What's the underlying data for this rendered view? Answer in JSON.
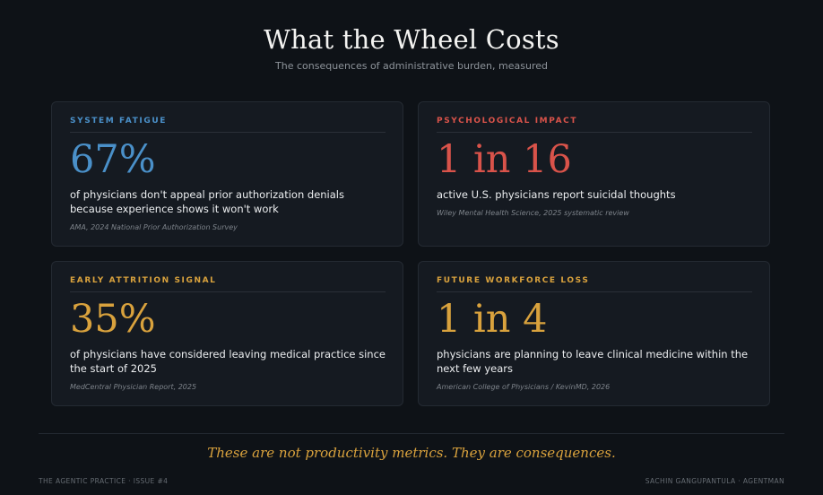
{
  "header": {
    "title": "What the Wheel Costs",
    "subtitle": "The consequences of administrative burden, measured"
  },
  "cards": [
    {
      "label": "SYSTEM FATIGUE",
      "stat": "67%",
      "description": "of physicians don't appeal prior authorization denials because experience shows it won't work",
      "source": "AMA, 2024 National Prior Authorization Survey",
      "accent": "#4a90c9"
    },
    {
      "label": "PSYCHOLOGICAL IMPACT",
      "stat": "1 in 16",
      "description": "active U.S. physicians report suicidal thoughts",
      "source": "Wiley Mental Health Science, 2025 systematic review",
      "accent": "#d9534a"
    },
    {
      "label": "EARLY ATTRITION SIGNAL",
      "stat": "35%",
      "description": "of physicians have considered leaving medical practice since the start of 2025",
      "source": "MedCentral Physician Report, 2025",
      "accent": "#d9a23d"
    },
    {
      "label": "FUTURE WORKFORCE LOSS",
      "stat": "1 in 4",
      "description": "physicians are planning to leave clinical medicine within the next few years",
      "source": "American College of Physicians / KevinMD, 2026",
      "accent": "#d9a23d"
    }
  ],
  "tagline": "These are not productivity metrics. They are consequences.",
  "footer": {
    "left": "THE AGENTIC PRACTICE · ISSUE #4",
    "right": "SACHIN GANGUPANTULA · AGENTMAN"
  }
}
